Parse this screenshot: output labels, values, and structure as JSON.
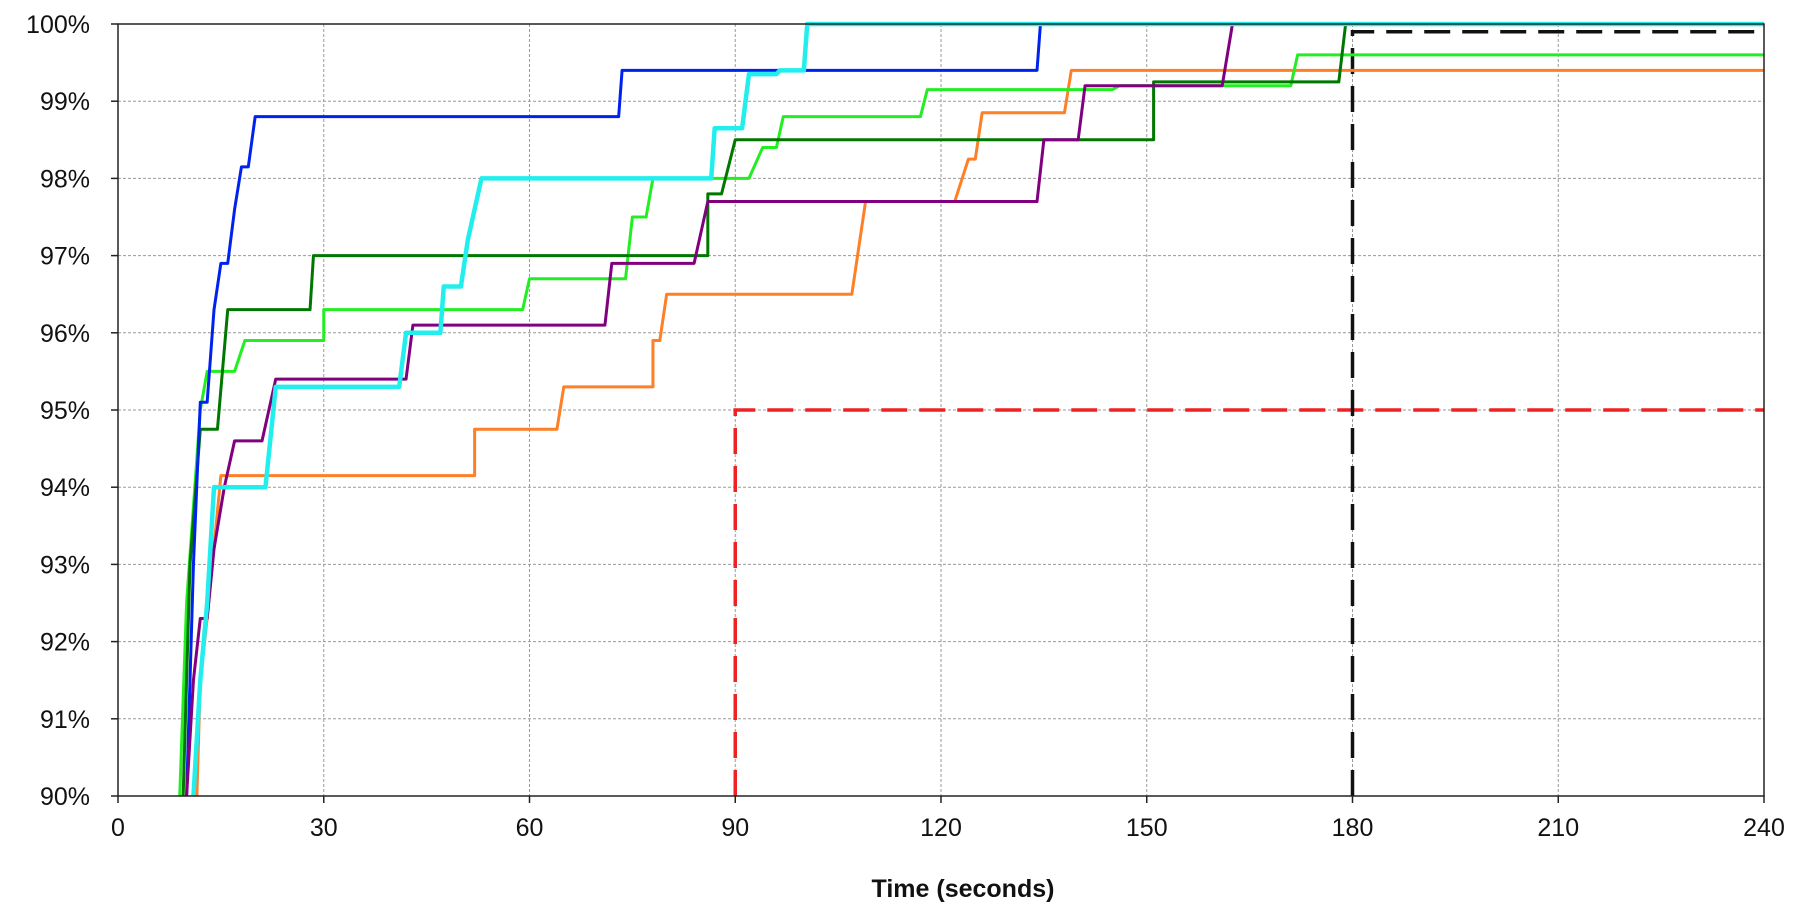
{
  "chart_data": {
    "type": "line",
    "title": "",
    "xlabel": "Time (seconds)",
    "ylabel": "",
    "xlim": [
      0,
      240
    ],
    "ylim": [
      90,
      100
    ],
    "x_ticks": [
      0,
      30,
      60,
      90,
      120,
      150,
      180,
      210,
      240
    ],
    "y_ticks": [
      90,
      91,
      92,
      93,
      94,
      95,
      96,
      97,
      98,
      99,
      100
    ],
    "y_tick_format": "percent",
    "grid": true,
    "legend": "none",
    "series": [
      {
        "color": "#ff7f27",
        "points": [
          [
            11.5,
            90
          ],
          [
            12,
            91.5
          ],
          [
            13,
            92.3
          ],
          [
            15,
            94.15
          ],
          [
            52,
            94.15
          ],
          [
            52,
            94.75
          ],
          [
            64,
            94.75
          ],
          [
            65,
            95.3
          ],
          [
            78,
            95.3
          ],
          [
            78,
            95.9
          ],
          [
            79,
            95.9
          ],
          [
            80,
            96.5
          ],
          [
            107,
            96.5
          ],
          [
            109,
            97.7
          ],
          [
            122,
            97.7
          ],
          [
            124,
            98.25
          ],
          [
            125,
            98.25
          ],
          [
            126,
            98.85
          ],
          [
            138,
            98.85
          ],
          [
            139,
            99.4
          ],
          [
            240,
            99.4
          ]
        ]
      },
      {
        "color": "#22ee22",
        "points": [
          [
            9,
            90
          ],
          [
            10,
            92.5
          ],
          [
            12,
            95
          ],
          [
            13,
            95.5
          ],
          [
            17,
            95.5
          ],
          [
            18.5,
            95.9
          ],
          [
            30,
            95.9
          ],
          [
            30,
            96.3
          ],
          [
            59,
            96.3
          ],
          [
            60,
            96.7
          ],
          [
            74,
            96.7
          ],
          [
            75,
            97.5
          ],
          [
            77,
            97.5
          ],
          [
            78,
            98
          ],
          [
            92,
            98
          ],
          [
            94,
            98.4
          ],
          [
            96,
            98.4
          ],
          [
            97,
            98.8
          ],
          [
            117,
            98.8
          ],
          [
            118,
            99.15
          ],
          [
            145,
            99.15
          ],
          [
            146,
            99.2
          ],
          [
            171,
            99.2
          ],
          [
            172,
            99.6
          ],
          [
            240,
            99.6
          ]
        ]
      },
      {
        "color": "#007700",
        "points": [
          [
            9.5,
            90
          ],
          [
            10.5,
            93
          ],
          [
            12,
            94.75
          ],
          [
            14.5,
            94.75
          ],
          [
            16,
            96.3
          ],
          [
            28,
            96.3
          ],
          [
            28.5,
            97
          ],
          [
            86,
            97
          ],
          [
            86,
            97.8
          ],
          [
            88,
            97.8
          ],
          [
            90,
            98.5
          ],
          [
            151,
            98.5
          ],
          [
            151,
            99.25
          ],
          [
            178,
            99.25
          ],
          [
            179,
            100
          ]
        ]
      },
      {
        "color": "#0022ee",
        "points": [
          [
            10,
            90
          ],
          [
            11,
            93
          ],
          [
            12,
            95.1
          ],
          [
            13,
            95.1
          ],
          [
            14,
            96.3
          ],
          [
            15,
            96.9
          ],
          [
            16,
            96.9
          ],
          [
            17,
            97.6
          ],
          [
            18,
            98.15
          ],
          [
            19,
            98.15
          ],
          [
            20,
            98.8
          ],
          [
            73,
            98.8
          ],
          [
            73.5,
            99.4
          ],
          [
            134,
            99.4
          ],
          [
            134.5,
            100
          ]
        ]
      },
      {
        "color": "#800080",
        "points": [
          [
            10,
            90
          ],
          [
            11,
            91.5
          ],
          [
            12,
            92.3
          ],
          [
            13,
            92.3
          ],
          [
            14,
            93.2
          ],
          [
            15.5,
            94
          ],
          [
            17,
            94.6
          ],
          [
            21,
            94.6
          ],
          [
            23,
            95.4
          ],
          [
            42,
            95.4
          ],
          [
            43,
            96.1
          ],
          [
            71,
            96.1
          ],
          [
            72,
            96.9
          ],
          [
            84,
            96.9
          ],
          [
            86,
            97.7
          ],
          [
            134,
            97.7
          ],
          [
            135,
            98.5
          ],
          [
            140,
            98.5
          ],
          [
            141,
            99.2
          ],
          [
            161,
            99.2
          ],
          [
            162.5,
            100
          ]
        ]
      },
      {
        "color": "#22eeee",
        "points": [
          [
            11,
            90
          ],
          [
            12,
            91.5
          ],
          [
            13,
            92.5
          ],
          [
            14,
            94
          ],
          [
            21.5,
            94
          ],
          [
            23,
            95.3
          ],
          [
            41,
            95.3
          ],
          [
            42,
            96
          ],
          [
            47,
            96
          ],
          [
            47.5,
            96.6
          ],
          [
            49,
            96.6
          ],
          [
            50,
            96.6
          ],
          [
            51,
            97.2
          ],
          [
            53,
            98
          ],
          [
            86.5,
            98
          ],
          [
            87,
            98.65
          ],
          [
            91,
            98.65
          ],
          [
            92,
            99.35
          ],
          [
            96,
            99.35
          ],
          [
            96.5,
            99.4
          ],
          [
            100,
            99.4
          ],
          [
            100.5,
            100
          ],
          [
            240,
            100
          ]
        ]
      }
    ],
    "reference_lines": [
      {
        "color": "#ee2222",
        "points": [
          [
            90,
            90
          ],
          [
            90,
            95
          ],
          [
            240,
            95
          ]
        ]
      },
      {
        "color": "#111111",
        "points": [
          [
            180,
            90
          ],
          [
            180,
            99.9
          ],
          [
            240,
            99.9
          ]
        ]
      }
    ]
  }
}
